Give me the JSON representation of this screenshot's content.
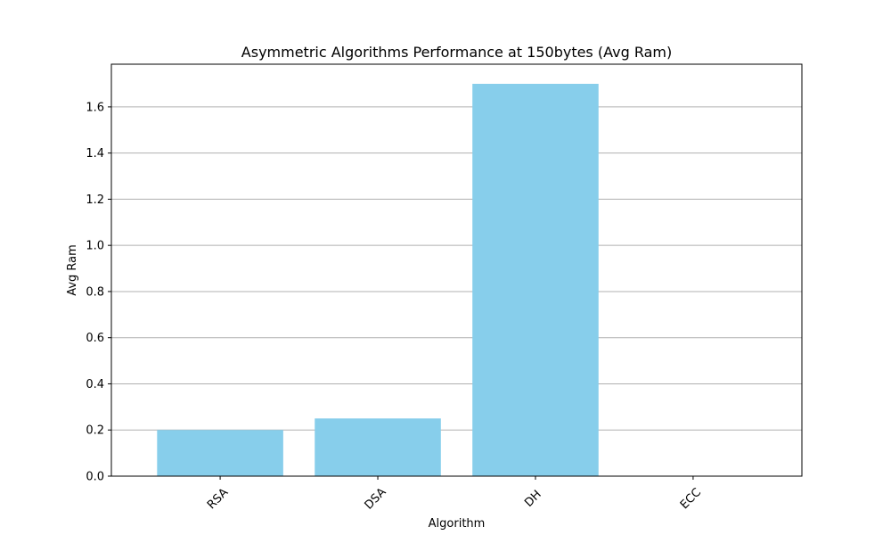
{
  "chart_data": {
    "type": "bar",
    "title": "Asymmetric Algorithms Performance at 150bytes (Avg Ram)",
    "xlabel": "Algorithm",
    "ylabel": "Avg Ram",
    "categories": [
      "RSA",
      "DSA",
      "DH",
      "ECC"
    ],
    "values": [
      0.2,
      0.25,
      1.7,
      0.0
    ],
    "ylim": [
      0,
      1.785
    ],
    "yticks": [
      "0.0",
      "0.2",
      "0.4",
      "0.6",
      "0.8",
      "1.0",
      "1.2",
      "1.4",
      "1.6"
    ],
    "grid": "y",
    "bar_color": "#87CEEB",
    "grid_color": "#b0b0b0",
    "xtick_rotation": -45
  }
}
